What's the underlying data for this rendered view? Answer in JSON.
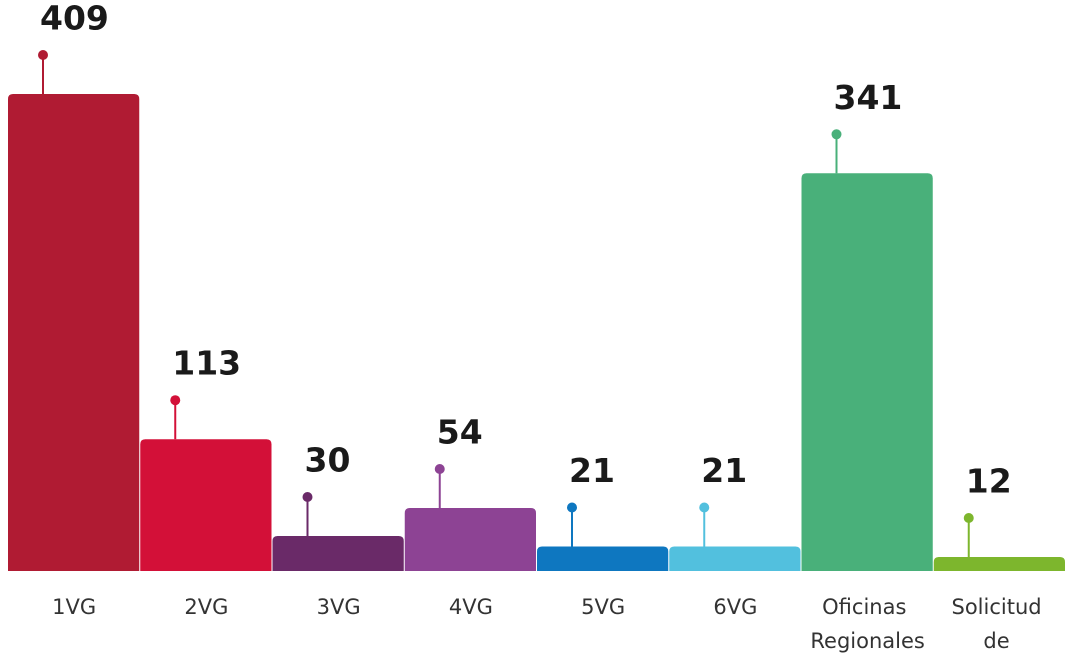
{
  "chart_data": {
    "type": "bar",
    "categories": [
      "1VG",
      "2VG",
      "3VG",
      "4VG",
      "5VG",
      "6VG",
      "Oficinas Regionales",
      "Solicitud de apoyo"
    ],
    "values": [
      409,
      113,
      30,
      54,
      21,
      21,
      341,
      12
    ],
    "colors": [
      "#b01b33",
      "#d31038",
      "#6a2a68",
      "#8d4394",
      "#0e77c0",
      "#52c0de",
      "#49b07a",
      "#7db62d"
    ]
  }
}
